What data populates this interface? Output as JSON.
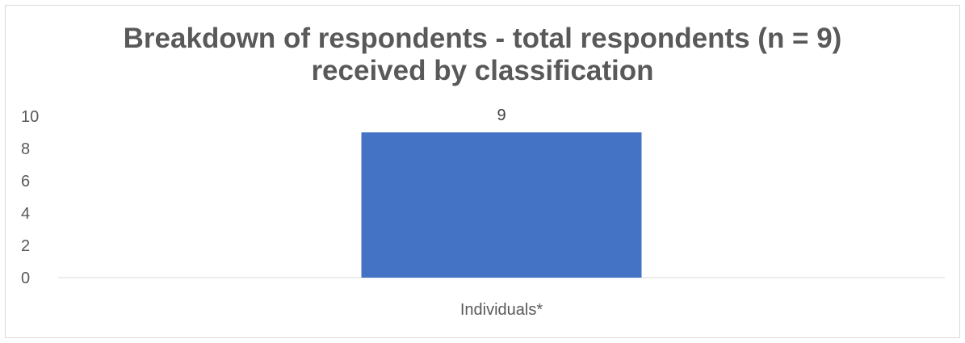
{
  "chart_data": {
    "type": "bar",
    "title_lines": [
      "Breakdown of respondents - total respondents (n = 9)",
      "received by classification"
    ],
    "categories": [
      "Individuals*"
    ],
    "values": [
      9
    ],
    "data_labels": [
      "9"
    ],
    "ylim": [
      0,
      10
    ],
    "yticks": [
      "0",
      "2",
      "4",
      "6",
      "8",
      "10"
    ],
    "xlabel": "",
    "ylabel": "",
    "grid": false,
    "legend": "none",
    "bar_color": "#4472c4",
    "axis_color": "#d9d9d9"
  }
}
